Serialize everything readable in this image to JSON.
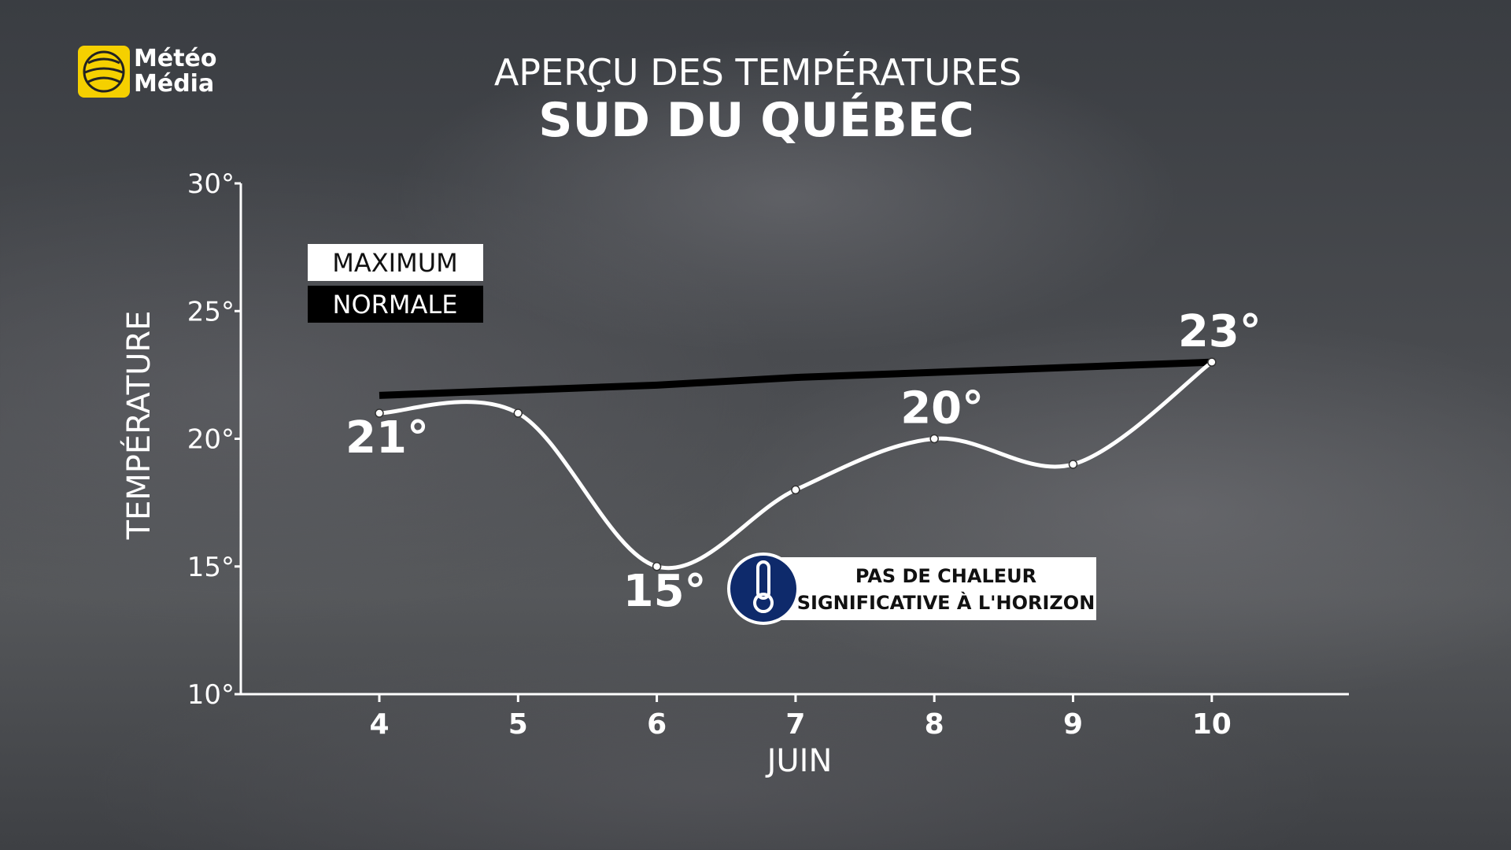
{
  "logo": [
    "Météo",
    "Média"
  ],
  "chart_data": {
    "type": "line",
    "title": "APERÇU DES TEMPÉRATURES",
    "subtitle": "SUD DU QUÉBEC",
    "y_label": "TEMPÉRATURE",
    "x_label": "JUIN",
    "annotation": [
      "PAS DE CHALEUR",
      "SIGNIFICATIVE À L'HORIZON"
    ],
    "categories": [
      "4",
      "5",
      "6",
      "7",
      "8",
      "9",
      "10"
    ],
    "series": [
      {
        "name": "MAXIMUM",
        "color": "#ffffff",
        "values": [
          21,
          21,
          15,
          18,
          20,
          19,
          23
        ],
        "value_labels": [
          "21°",
          null,
          "15°",
          null,
          "20°",
          null,
          "23°"
        ],
        "smooth": true,
        "markers": true
      },
      {
        "name": "NORMALE",
        "color": "#000000",
        "values": [
          21.7,
          21.9,
          22.1,
          22.4,
          22.6,
          22.8,
          23.0
        ],
        "smooth": false,
        "markers": false
      }
    ],
    "ylim": [
      10,
      30
    ],
    "yticks": [
      {
        "value": 10,
        "label": "10°"
      },
      {
        "value": 15,
        "label": "15°"
      },
      {
        "value": 20,
        "label": "20°"
      },
      {
        "value": 25,
        "label": "25°"
      },
      {
        "value": 30,
        "label": "30°"
      }
    ],
    "grid": false
  }
}
